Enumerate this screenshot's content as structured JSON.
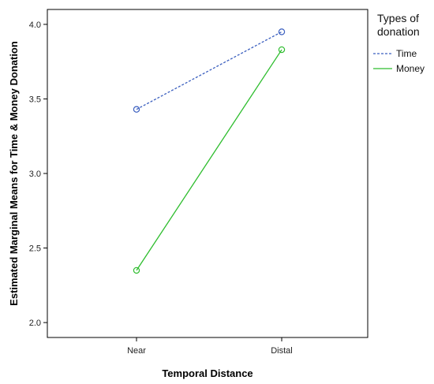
{
  "chart_data": {
    "type": "line",
    "title": "",
    "xlabel": "Temporal Distance",
    "ylabel": "Estimated Marginal Means for Time & Money Donation",
    "categories": [
      "Near",
      "Distal"
    ],
    "ylim": [
      1.9,
      4.1
    ],
    "yticks": [
      "2.0",
      "2.5",
      "3.0",
      "3.5",
      "4.0"
    ],
    "grid": false,
    "legend_title": [
      "Types of",
      "donation"
    ],
    "legend_position": "right",
    "series": [
      {
        "name": "Time",
        "values": [
          3.43,
          3.95
        ],
        "color": "#3b5fbf",
        "dash": "dashed",
        "marker": "open-circle"
      },
      {
        "name": "Money",
        "values": [
          2.35,
          3.83
        ],
        "color": "#2ebd2e",
        "dash": "solid",
        "marker": "open-circle"
      }
    ]
  }
}
